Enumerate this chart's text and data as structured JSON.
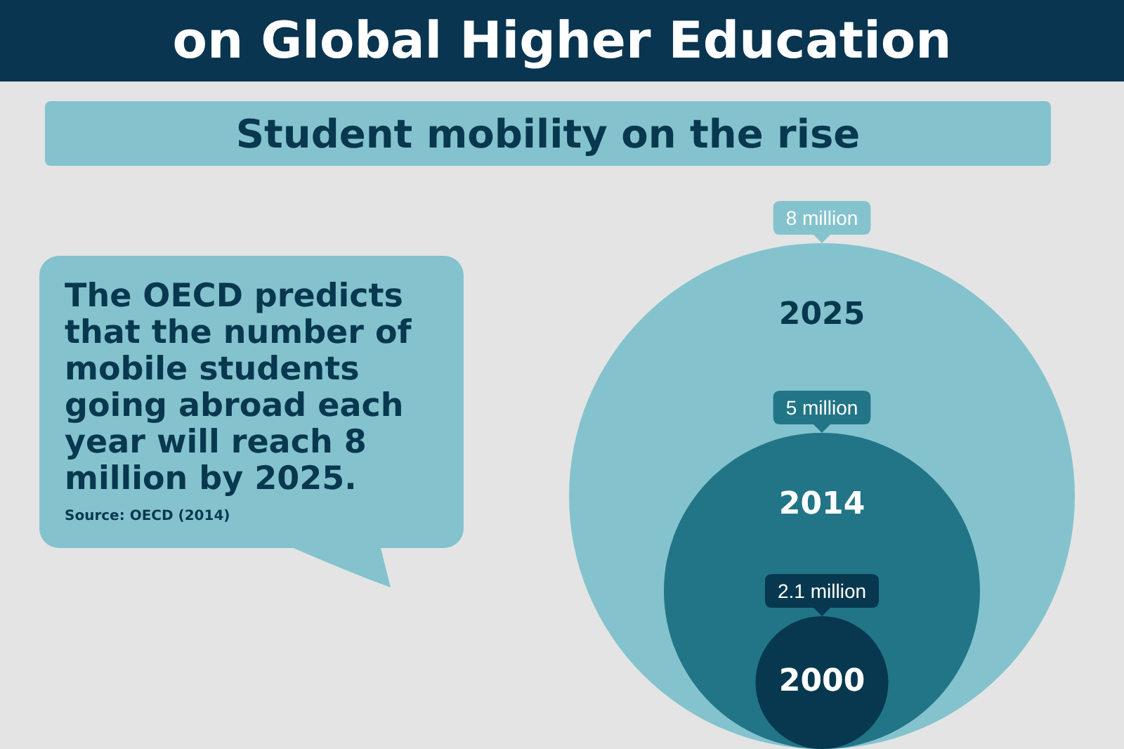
{
  "chart_data": {
    "type": "other",
    "title": "on Global Higher Education",
    "subtitle": "Student mobility on the rise",
    "categories": [
      "2000",
      "2014",
      "2025"
    ],
    "values": [
      2.1,
      5,
      8
    ],
    "value_labels": [
      "2.1 million",
      "5 million",
      "8 million"
    ],
    "colors": [
      "#08384f",
      "#217587",
      "#84c3cd"
    ],
    "annotations": [
      "The OECD predicts that the number of mobile students going abroad each year will reach 8 million by 2025.",
      "Source: OECD (2014)"
    ]
  }
}
